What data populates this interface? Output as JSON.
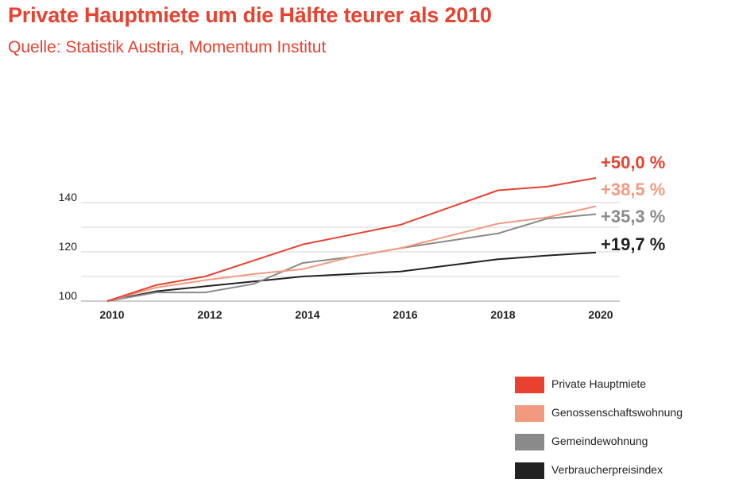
{
  "title": "Private Hauptmiete um die Hälfte teurer als 2010",
  "subtitle": "Quelle: Statistik Austria, Momentum Institut",
  "chart_data": {
    "type": "line",
    "x": [
      2010,
      2011,
      2012,
      2013,
      2014,
      2015,
      2016,
      2017,
      2018,
      2019,
      2020
    ],
    "xticks": [
      "2010",
      "2012",
      "2014",
      "2016",
      "2018",
      "2020"
    ],
    "yticks": [
      "100",
      "120",
      "140"
    ],
    "xlim": [
      2010,
      2020
    ],
    "ylim": [
      100,
      150
    ],
    "grid": true,
    "legend_position": "bottom-right",
    "series": [
      {
        "name": "Private Hauptmiete",
        "color": "#e8412f",
        "end_label": "+50,0 %",
        "values": [
          100,
          106.5,
          110,
          116.5,
          123,
          127,
          131,
          138,
          145,
          146.5,
          150.0
        ]
      },
      {
        "name": "Genossenschaftswohnung",
        "color": "#f29a7f",
        "end_label": "+38,5 %",
        "values": [
          100,
          105.5,
          108.5,
          111,
          113,
          118,
          121.5,
          126.5,
          131.5,
          134,
          138.5
        ]
      },
      {
        "name": "Gemeindewohnung",
        "color": "#8a8a8a",
        "end_label": "+35,3 %",
        "values": [
          100,
          103.5,
          103.5,
          107,
          115.5,
          118,
          121.5,
          124.5,
          127.5,
          133.5,
          135.3
        ]
      },
      {
        "name": "Verbraucherpreisindex",
        "color": "#222222",
        "end_label": "+19,7 %",
        "values": [
          100,
          104,
          106,
          108,
          110,
          111,
          112,
          114.5,
          117,
          118.5,
          119.7
        ]
      }
    ]
  }
}
